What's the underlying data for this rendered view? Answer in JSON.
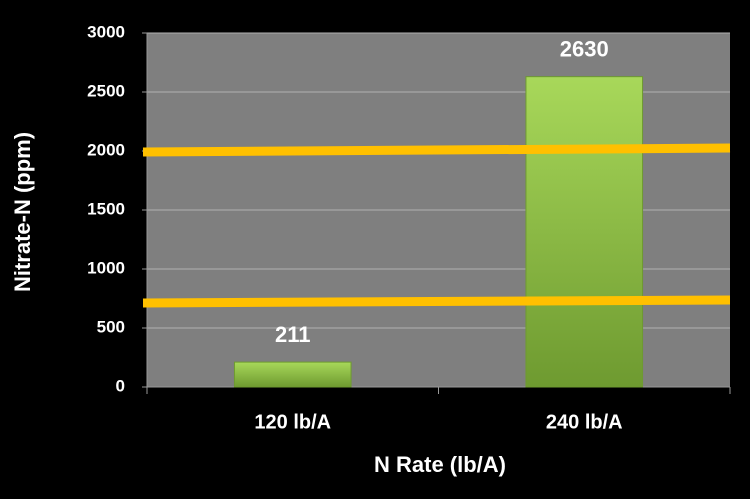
{
  "chart_data": {
    "type": "bar",
    "x_label": "N Rate (lb/A)",
    "y_label": "Nitrate-N (ppm)",
    "categories": [
      "120 lb/A",
      "240 lb/A"
    ],
    "values": [
      211,
      2630
    ],
    "color": "#92d050",
    "ylim": [
      0,
      3000
    ],
    "yticks": [
      0,
      500,
      1000,
      1500,
      2000,
      2500,
      3000
    ],
    "grid": true,
    "lines": [
      {
        "start": 1991,
        "end": 2025,
        "color": "#ffc000"
      },
      {
        "start": 712,
        "end": 737,
        "color": "#ffc000"
      }
    ]
  }
}
